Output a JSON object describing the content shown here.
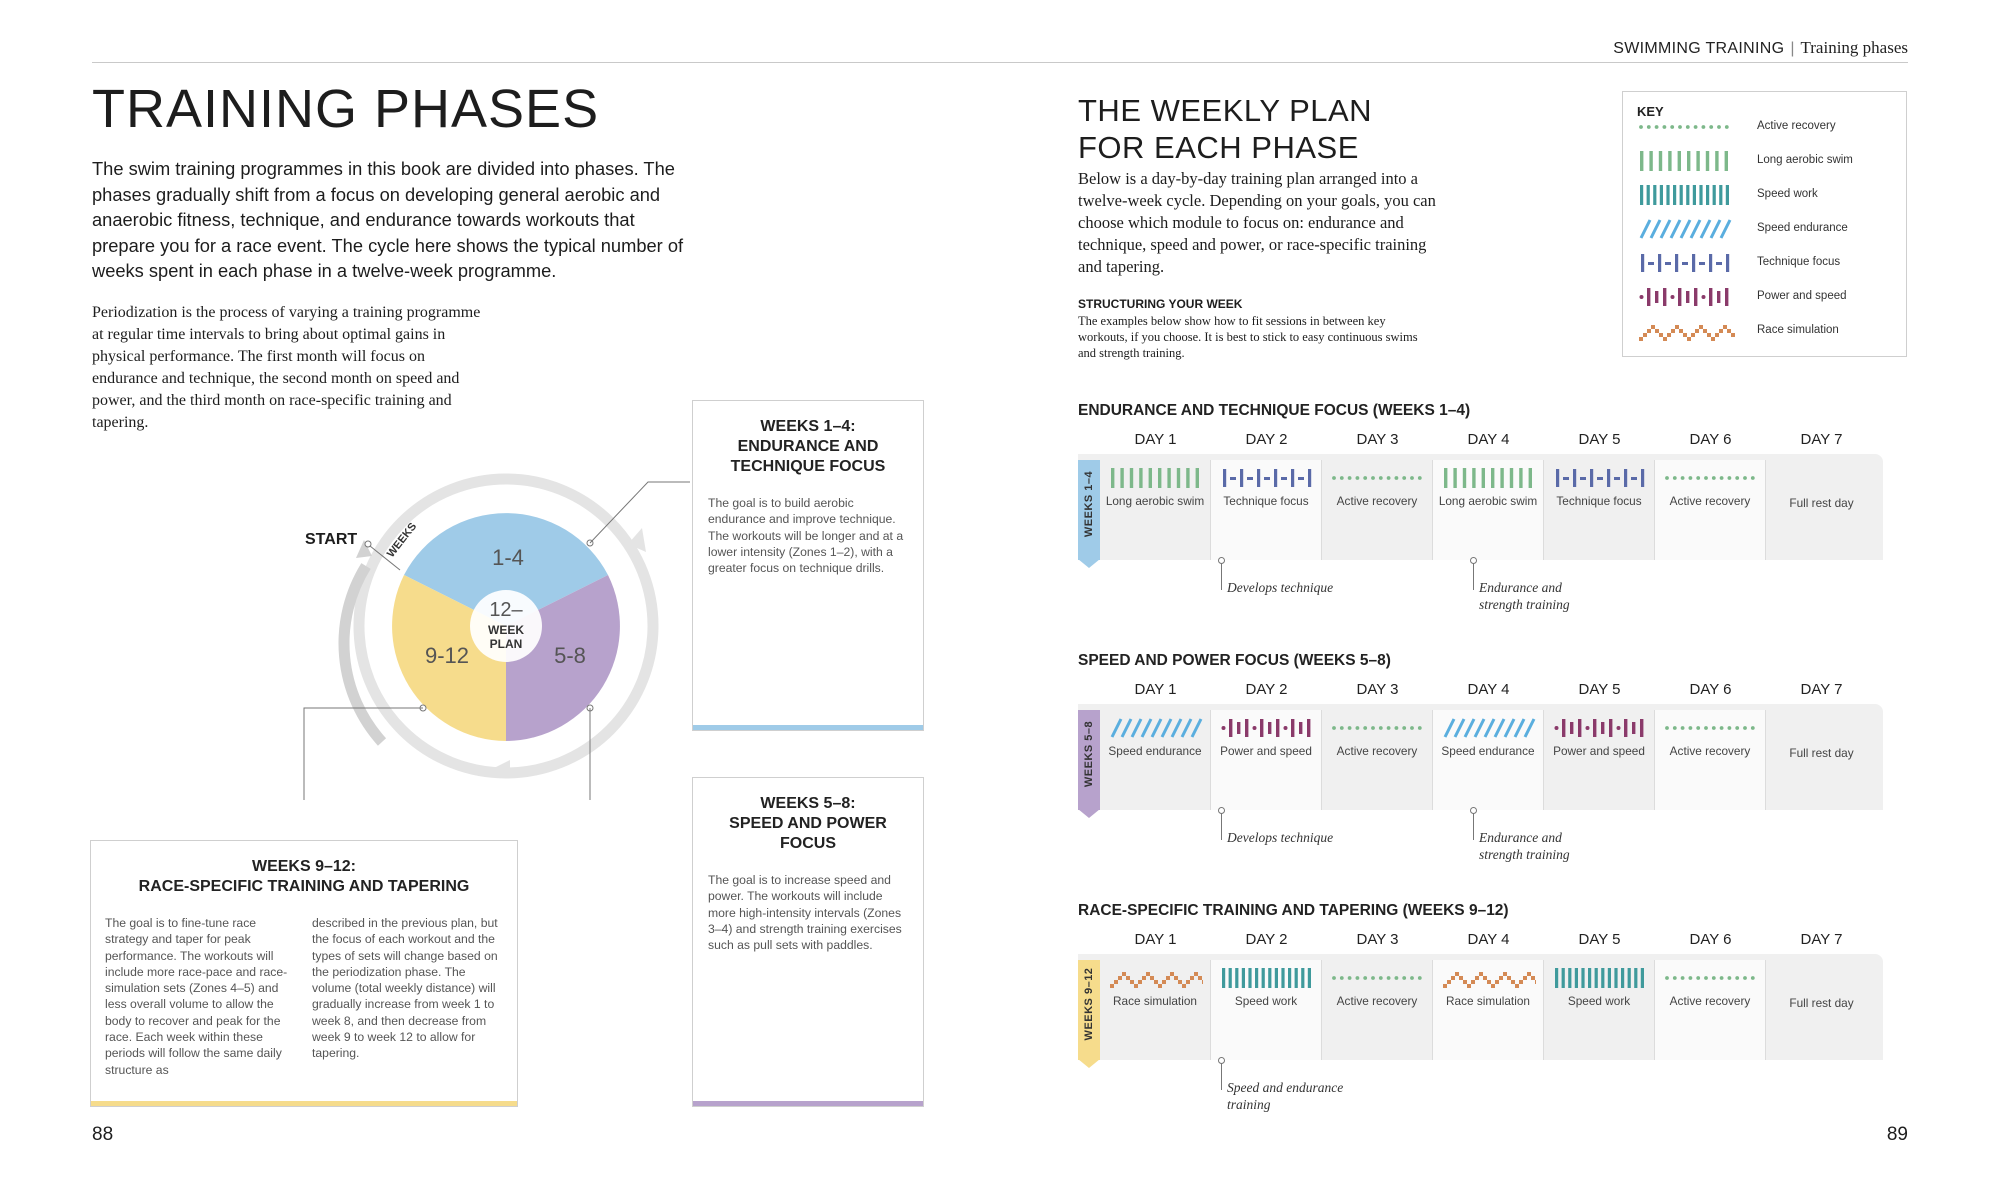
{
  "header": {
    "section": "SWIMMING TRAINING",
    "subsection": "Training phases"
  },
  "left": {
    "title": "TRAINING PHASES",
    "intro": "The swim training programmes in this book are divided into phases. The phases gradually shift from a focus on developing general aerobic and anaerobic fitness, technique, and endurance towards workouts that prepare you for a race event. The cycle here shows the typical number of weeks spent in each phase in a twelve-week programme.",
    "periodization": "Periodization is the process of varying a training programme at regular time intervals to bring about optimal gains in physical performance. The first month will focus on endurance and technique, the second month on speed and power, and the third month on race-specific training and tapering.",
    "page_number": "88"
  },
  "cycle": {
    "start": "START",
    "weeks_label": "WEEKS",
    "center_top": "12–",
    "center_mid": "WEEK",
    "center_bot": "PLAN",
    "segments": [
      {
        "label": "1-4",
        "color": "#9fcbe8"
      },
      {
        "label": "5-8",
        "color": "#b7a2cc"
      },
      {
        "label": "9-12",
        "color": "#f6dc8c"
      }
    ]
  },
  "boxes": {
    "b1": {
      "title1": "WEEKS 1–4:",
      "title2": "ENDURANCE AND",
      "title3": "TECHNIQUE FOCUS",
      "text": "The goal is to build aerobic endurance and improve technique. The workouts will be longer and at a lower intensity (Zones 1–2), with a greater focus on technique drills.",
      "accent": "#9fcbe8"
    },
    "b2": {
      "title1": "WEEKS 5–8:",
      "title2": "SPEED AND POWER",
      "title3": "FOCUS",
      "text": "The goal is to increase speed and power. The workouts will include more high-intensity intervals (Zones 3–4) and strength training exercises such as pull sets with paddles.",
      "accent": "#b7a2cc"
    },
    "b3": {
      "title1": "WEEKS 9–12:",
      "title2": "RACE-SPECIFIC TRAINING AND TAPERING",
      "col1": "The goal is to fine-tune race strategy and taper for peak performance. The workouts will include more race-pace and race-simulation sets (Zones 4–5) and less overall volume to allow the body to recover and peak for the race. Each week within these periods will follow the same daily structure as",
      "col2": "described in the previous plan, but the focus of each workout and the types of sets will change based on the periodization phase. The volume (total weekly distance) will gradually increase from week 1 to week 8, and then decrease from week 9 to week 12 to allow for tapering.",
      "accent": "#f6dc8c"
    }
  },
  "right": {
    "title1": "THE WEEKLY PLAN",
    "title2": "FOR EACH PHASE",
    "intro": "Below is a day-by-day training plan arranged into a twelve-week cycle. Depending on your goals, you can choose which module to focus on: endurance and technique, speed and power, or race-specific training and tapering.",
    "struct_head": "STRUCTURING YOUR WEEK",
    "struct_text": "The examples below show how to fit sessions in between key workouts, if you choose. It is best to stick to easy continuous swims and strength training.",
    "page_number": "89"
  },
  "key": {
    "title": "KEY",
    "items": [
      {
        "label": "Active recovery",
        "icon": "dots-icon"
      },
      {
        "label": "Long aerobic swim",
        "icon": "green-bars-icon"
      },
      {
        "label": "Speed work",
        "icon": "teal-bars-icon"
      },
      {
        "label": "Speed endurance",
        "icon": "blue-slashes-icon"
      },
      {
        "label": "Technique focus",
        "icon": "technique-bars-icon"
      },
      {
        "label": "Power and speed",
        "icon": "power-bars-icon"
      },
      {
        "label": "Race simulation",
        "icon": "zigzag-icon"
      }
    ]
  },
  "colors": {
    "green": "#7db88a",
    "teal": "#3f9a9c",
    "blue": "#5aaede",
    "indigo": "#5a6aa8",
    "plum": "#8a3a6a",
    "orange": "#d48a55"
  },
  "days": [
    "DAY 1",
    "DAY 2",
    "DAY 3",
    "DAY 4",
    "DAY 5",
    "DAY 6",
    "DAY 7"
  ],
  "plans": [
    {
      "heading": "ENDURANCE AND TECHNIQUE FOCUS (WEEKS 1–4)",
      "tab": "WEEKS 1–4",
      "tab_color": "#9fcbe8",
      "cells": [
        {
          "label": "Long aerobic swim",
          "icon": "green-bars"
        },
        {
          "label": "Technique focus",
          "icon": "technique"
        },
        {
          "label": "Active recovery",
          "icon": "dots"
        },
        {
          "label": "Long aerobic swim",
          "icon": "green-bars"
        },
        {
          "label": "Technique focus",
          "icon": "technique"
        },
        {
          "label": "Active recovery",
          "icon": "dots"
        },
        {
          "label": "Full rest day",
          "icon": ""
        }
      ],
      "notes": [
        {
          "text": "Develops technique"
        },
        {
          "text": "Endurance and strength training"
        }
      ]
    },
    {
      "heading": "SPEED AND POWER FOCUS (WEEKS 5–8)",
      "tab": "WEEKS 5–8",
      "tab_color": "#b7a2cc",
      "cells": [
        {
          "label": "Speed endurance",
          "icon": "slashes"
        },
        {
          "label": "Power and speed",
          "icon": "power"
        },
        {
          "label": "Active recovery",
          "icon": "dots"
        },
        {
          "label": "Speed endurance",
          "icon": "slashes"
        },
        {
          "label": "Power and speed",
          "icon": "power"
        },
        {
          "label": "Active recovery",
          "icon": "dots"
        },
        {
          "label": "Full rest day",
          "icon": ""
        }
      ],
      "notes": [
        {
          "text": "Develops technique"
        },
        {
          "text": "Endurance and strength training"
        }
      ]
    },
    {
      "heading": "RACE-SPECIFIC TRAINING AND TAPERING (WEEKS 9–12)",
      "tab": "WEEKS 9–12",
      "tab_color": "#f6dc8c",
      "cells": [
        {
          "label": "Race simulation",
          "icon": "zigzag"
        },
        {
          "label": "Speed work",
          "icon": "teal-bars"
        },
        {
          "label": "Active recovery",
          "icon": "dots"
        },
        {
          "label": "Race simulation",
          "icon": "zigzag"
        },
        {
          "label": "Speed work",
          "icon": "teal-bars"
        },
        {
          "label": "Active recovery",
          "icon": "dots"
        },
        {
          "label": "Full rest day",
          "icon": ""
        }
      ],
      "notes": [
        {
          "text": "Speed and endurance training"
        }
      ]
    }
  ]
}
